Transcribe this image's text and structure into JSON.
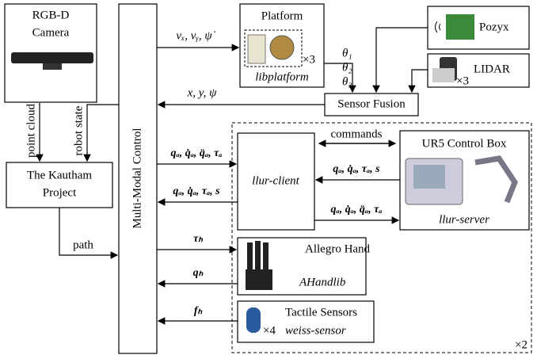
{
  "camera": {
    "title_line1": "RGB-D",
    "title_line2": "Camera"
  },
  "kautham": {
    "title_line1": "The Kautham",
    "title_line2": "Project"
  },
  "control": {
    "title": "Multi-Modal Control"
  },
  "platform": {
    "title": "Platform",
    "count": "×3",
    "library": "libplatform"
  },
  "pozyx": {
    "title": "Pozyx"
  },
  "lidar": {
    "title": "LIDAR",
    "count": "×3"
  },
  "sensor_fusion": {
    "title": "Sensor Fusion"
  },
  "llur_client": {
    "title": "llur-client"
  },
  "ur5": {
    "title": "UR5 Control Box",
    "library": "llur-server"
  },
  "allegro": {
    "title": "Allegro Hand",
    "library": "AHandlib"
  },
  "tactile": {
    "title": "Tactile Sensors",
    "count": "×4",
    "library": "weiss-sensor"
  },
  "group": {
    "count": "×2"
  },
  "edges": {
    "point_cloud": "point cloud",
    "robot_state": "robot state",
    "path": "path",
    "velocity_cmd": "vₓ, vᵧ, ψ̇",
    "theta1": "θ₁",
    "theta2": "θ₂",
    "theta3": "θ₃",
    "pose": "x, y, ψ",
    "commands": "commands",
    "arm_cmd": "qₐ, q̇ₐ, q̈ₐ, τₐ",
    "arm_state": "qₐ, q̇ₐ, τₐ, s",
    "server_state": "qₐ, q̇ₐ, τₐ, s",
    "server_cmd": "qₐ, q̇ₐ, q̈ₐ, τₐ",
    "hand_torque": "τₕ",
    "hand_state": "qₕ",
    "tactile_force": "fₕ"
  }
}
